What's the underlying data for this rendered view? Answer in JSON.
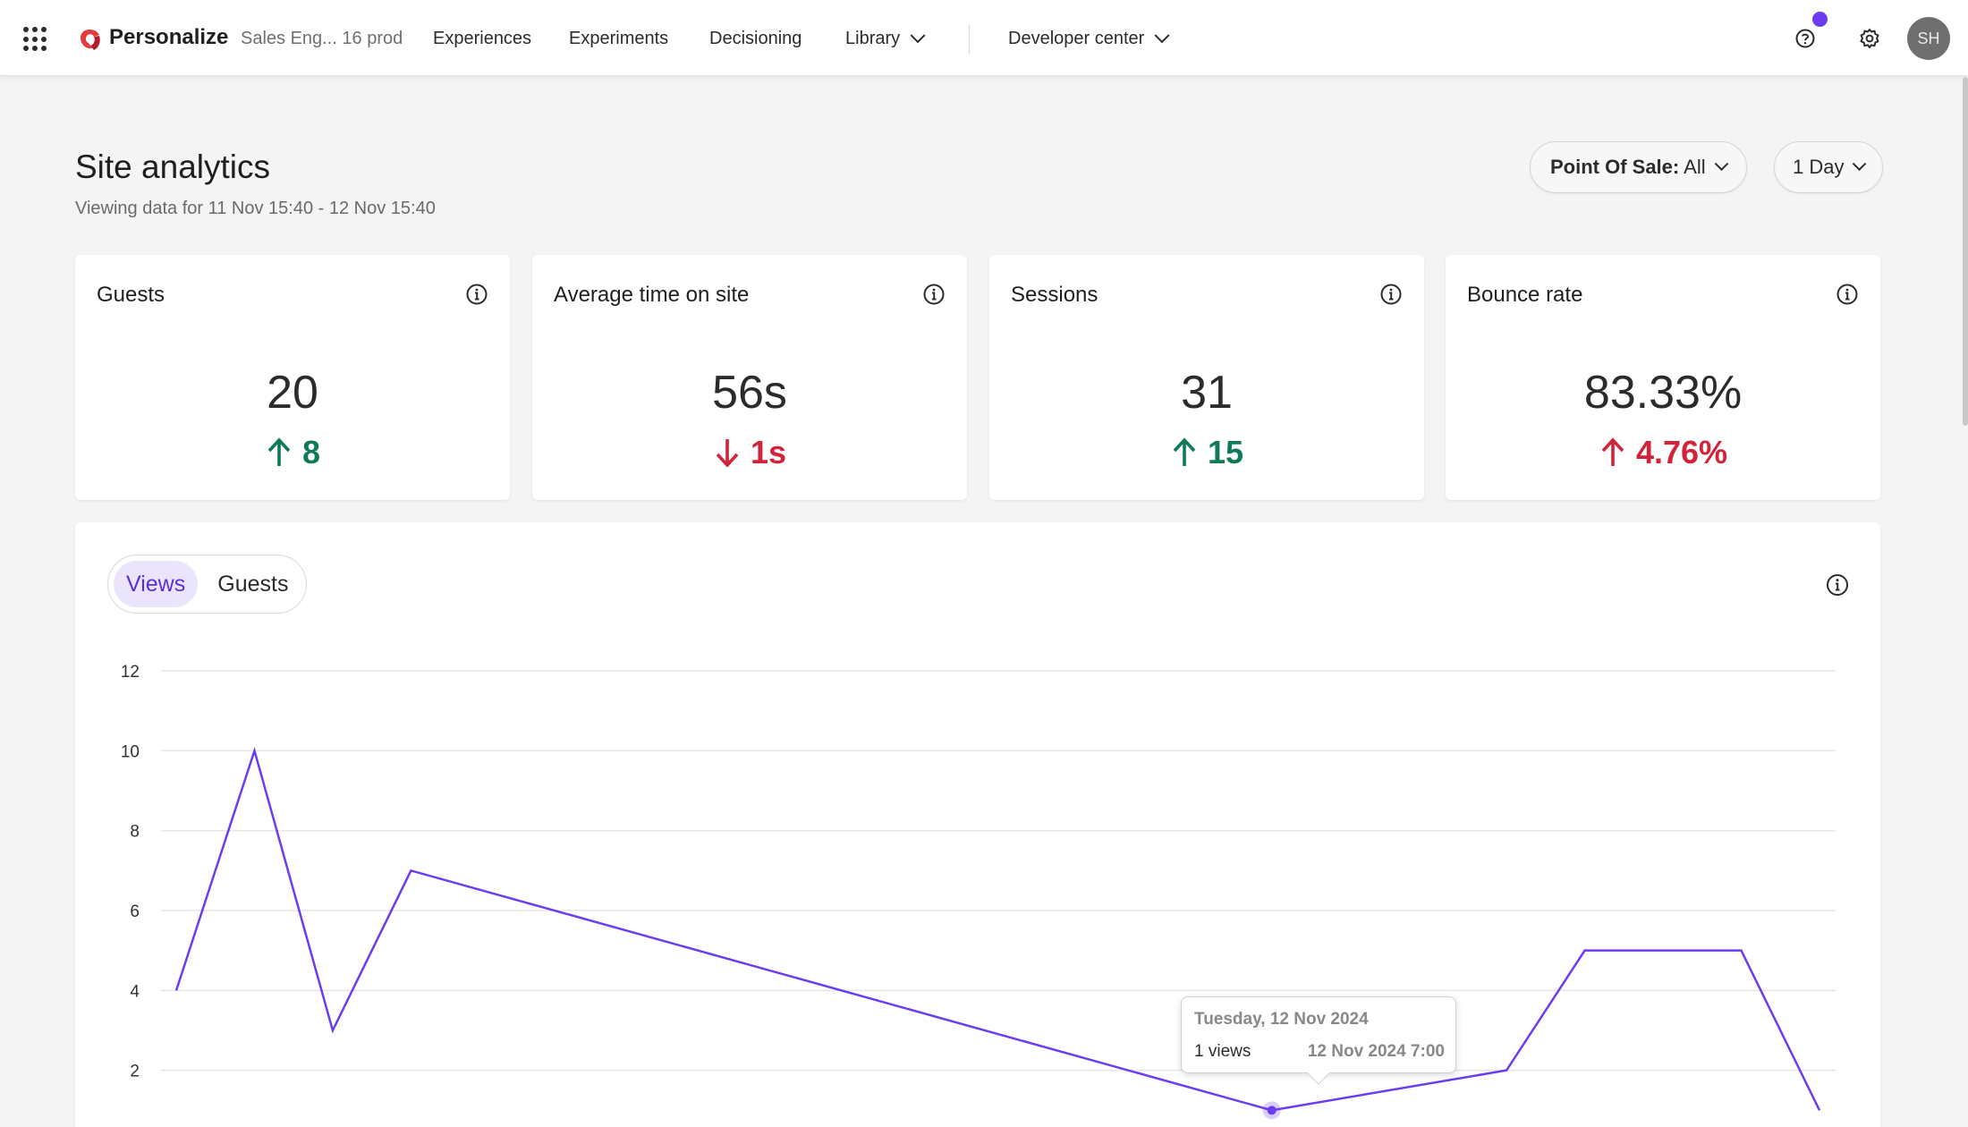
{
  "topbar": {
    "brand": "Personalize",
    "tenant": "Sales Eng... 16 prod",
    "nav": [
      "Experiences",
      "Experiments",
      "Decisioning",
      "Library",
      "Developer center"
    ],
    "avatar_initials": "SH",
    "accent": "#6b3cf0"
  },
  "header": {
    "title": "Site analytics",
    "subtitle": "Viewing data for 11 Nov 15:40 - 12 Nov 15:40",
    "filter_label": "Point Of Sale:",
    "filter_value": "All",
    "range": "1 Day"
  },
  "kpis": [
    {
      "label": "Guests",
      "value": "20",
      "delta": "8",
      "direction": "up",
      "color": "#0f7a55"
    },
    {
      "label": "Average time on site",
      "value": "56s",
      "delta": "1s",
      "direction": "down",
      "color": "#d1243b"
    },
    {
      "label": "Sessions",
      "value": "31",
      "delta": "15",
      "direction": "up",
      "color": "#0f7a55"
    },
    {
      "label": "Bounce rate",
      "value": "83.33%",
      "delta": "4.76%",
      "direction": "up",
      "color": "#d1243b"
    }
  ],
  "chart": {
    "tabs": [
      "Views",
      "Guests"
    ],
    "active_tab": "Views",
    "tooltip": {
      "date": "Tuesday, 12 Nov 2024",
      "views": "1 views",
      "time": "12 Nov 2024 7:00"
    }
  },
  "chart_data": {
    "type": "line",
    "series": [
      {
        "values": [
          4,
          10,
          3,
          7,
          1,
          2,
          5,
          5,
          1
        ]
      }
    ],
    "x_index": [
      0,
      1,
      2,
      3,
      14,
      17,
      18,
      20,
      21
    ],
    "x_domain": [
      0,
      21
    ],
    "yticks": [
      2,
      4,
      6,
      8,
      10,
      12
    ],
    "ylim": [
      0,
      12
    ],
    "grid": true,
    "color": "#6b3cf0",
    "highlight_index": 4
  }
}
